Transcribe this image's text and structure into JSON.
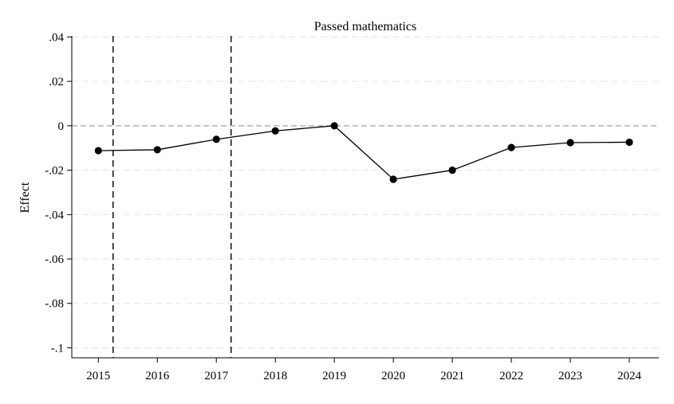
{
  "chart_data": {
    "type": "line",
    "title": "Passed mathematics",
    "xlabel": "",
    "ylabel": "Effect",
    "x": [
      2015,
      2016,
      2017,
      2018,
      2019,
      2020,
      2021,
      2022,
      2023,
      2024
    ],
    "series": [
      {
        "values": [
          -0.0112,
          -0.0108,
          -0.0061,
          -0.0023,
          0.0,
          -0.0241,
          -0.02,
          -0.0098,
          -0.0076,
          -0.0074
        ]
      }
    ],
    "xlim": [
      2014.55,
      2024.5
    ],
    "ylim": [
      -0.1045,
      0.0405
    ],
    "yticks": [
      0.04,
      0.02,
      0,
      -0.02,
      -0.04,
      -0.06,
      -0.08,
      -0.1
    ],
    "ytick_labels": [
      ".04",
      ".02",
      "0",
      "-.02",
      "-.04",
      "-.06",
      "-.08",
      "-.1"
    ],
    "xtick_labels": [
      "2015",
      "2016",
      "2017",
      "2018",
      "2019",
      "2020",
      "2021",
      "2022",
      "2023",
      "2024"
    ],
    "vlines": [
      2015.25,
      2017.25
    ],
    "hline": 0,
    "grid": true,
    "legend": "none"
  }
}
